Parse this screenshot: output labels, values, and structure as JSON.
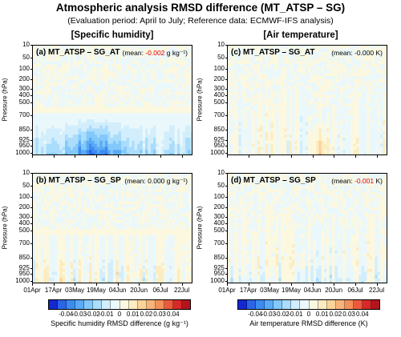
{
  "title": "Atmospheric analysis RMSD difference (MT_ATSP – SG)",
  "subtitle": "(Evaluation period: April to July; Reference data: ECMWF-IFS analysis)",
  "columns": [
    "[Specific humidity]",
    "[Air temperature]"
  ],
  "y_axis_label": "Pressure (hPa)",
  "y_ticks": [
    "10",
    "50",
    "100",
    "200",
    "300",
    "400",
    "500",
    "700",
    "850",
    "925",
    "950",
    "1000"
  ],
  "x_ticks": [
    "01Apr",
    "17Apr",
    "03May",
    "19May",
    "04Jun",
    "20Jun",
    "06Jul",
    "22Jul"
  ],
  "panels": [
    {
      "label": "(a) MT_ATSP – SG_AT",
      "mean_prefix": "(mean: ",
      "mean_value": "-0.002",
      "mean_unit": " g kg⁻¹)",
      "mean_negative": true,
      "var": "q",
      "exp": "AT"
    },
    {
      "label": "(b) MT_ATSP – SG_SP",
      "mean_prefix": "(mean: ",
      "mean_value": "0.000",
      "mean_unit": " g kg⁻¹)",
      "mean_negative": false,
      "var": "q",
      "exp": "SP"
    },
    {
      "label": "(c) MT_ATSP – SG_AT",
      "mean_prefix": "(mean: ",
      "mean_value": "-0.000",
      "mean_unit": " K)",
      "mean_negative": false,
      "var": "t",
      "exp": "AT"
    },
    {
      "label": "(d) MT_ATSP – SG_SP",
      "mean_prefix": "(mean: ",
      "mean_value": "-0.001",
      "mean_unit": " K)",
      "mean_negative": true,
      "var": "t",
      "exp": "SP"
    }
  ],
  "colorbars": [
    {
      "title": "Specific humidity RMSD difference (g kg⁻¹)",
      "labels": [
        "-0.04",
        "-0.03",
        "-0.02",
        "-0.01",
        "0",
        "0.01",
        "0.02",
        "0.03",
        "0.04"
      ]
    },
    {
      "title": "Air temperature RMSD difference (K)",
      "labels": [
        "-0.04",
        "-0.03",
        "-0.02",
        "-0.01",
        "0",
        "0.01",
        "0.02",
        "0.03",
        "0.04"
      ]
    }
  ],
  "palette": [
    "#1428d2",
    "#2c64e6",
    "#3c8cf0",
    "#5aaaf5",
    "#82c8fa",
    "#aadcfc",
    "#d2eefc",
    "#eaf8fc",
    "#fcf8e0",
    "#fcecc0",
    "#fcd49a",
    "#f8b478",
    "#f4905a",
    "#ec5a3c",
    "#d82828",
    "#b4141e"
  ],
  "chart_data": [
    {
      "type": "heatmap",
      "title": "(a) MT_ATSP – SG_AT",
      "variable": "Specific humidity RMSD difference",
      "unit": "g kg⁻¹",
      "x_range": [
        "01Apr",
        "31Jul"
      ],
      "y_range_hPa": [
        10,
        1000
      ],
      "mean": -0.002,
      "color_range": [
        -0.04,
        0.04
      ],
      "pattern": "predominantly negative (blue) below ~700 hPa, strongest near 850–950 hPa in late April to mid-May; near zero above 500 hPa"
    },
    {
      "type": "heatmap",
      "title": "(b) MT_ATSP – SG_SP",
      "variable": "Specific humidity RMSD difference",
      "unit": "g kg⁻¹",
      "x_range": [
        "01Apr",
        "31Jul"
      ],
      "y_range_hPa": [
        10,
        1000
      ],
      "mean": 0.0,
      "color_range": [
        -0.04,
        0.04
      ],
      "pattern": "mixed small positive (orange) and negative (blue) stripes in lower troposphere; near zero aloft"
    },
    {
      "type": "heatmap",
      "title": "(c) MT_ATSP – SG_AT",
      "variable": "Air temperature RMSD difference",
      "unit": "K",
      "x_range": [
        "01Apr",
        "31Jul"
      ],
      "y_range_hPa": [
        10,
        1000
      ],
      "mean": -0.0,
      "color_range": [
        -0.04,
        0.04
      ],
      "pattern": "mixed weak positive/negative vertical stripes, stronger orange near 850–950 hPa in mid-June"
    },
    {
      "type": "heatmap",
      "title": "(d) MT_ATSP – SG_SP",
      "variable": "Air temperature RMSD difference",
      "unit": "K",
      "x_range": [
        "01Apr",
        "31Jul"
      ],
      "y_range_hPa": [
        10,
        1000
      ],
      "mean": -0.001,
      "color_range": [
        -0.04,
        0.04
      ],
      "pattern": "weak mixed stripes, slightly negative (blue) near 850–1000 hPa"
    }
  ]
}
